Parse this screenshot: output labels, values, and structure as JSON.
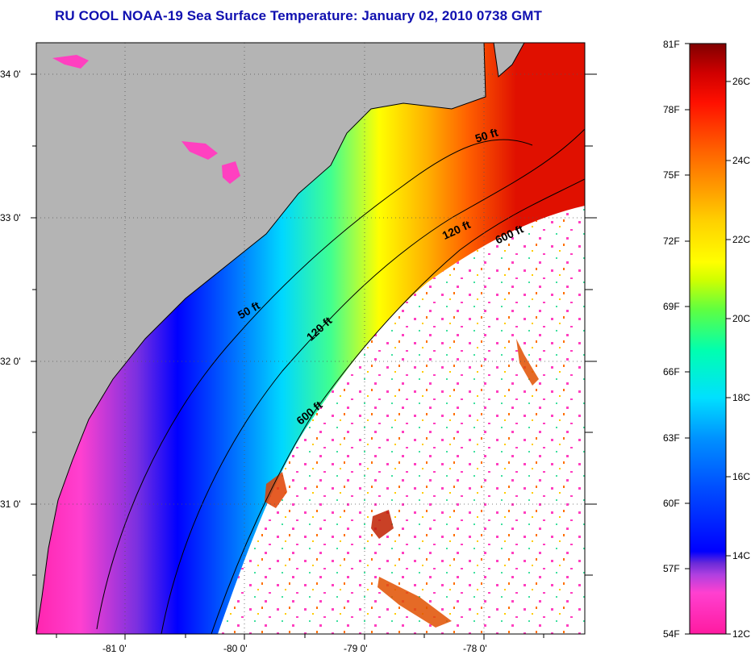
{
  "title": "RU COOL  NOAA-19  Sea Surface Temperature:  January 02, 2010 0738 GMT",
  "map": {
    "lon_ticks": [
      "-81 0'",
      "-80 0'",
      "-79 0'",
      "-78 0'"
    ],
    "lat_ticks": [
      "34 0'",
      "33 0'",
      "32 0'",
      "31 0'"
    ],
    "isobaths": [
      "50 ft",
      "120 ft",
      "600 ft",
      "50 ft",
      "120 ft",
      "600 ft"
    ],
    "colors": {
      "land": "#b4b4b4",
      "cloud": "#ffffff",
      "coast": "#000000"
    }
  },
  "colorbar": {
    "fahrenheit_labels": [
      "81F",
      "78F",
      "75F",
      "72F",
      "69F",
      "66F",
      "63F",
      "60F",
      "57F",
      "54F"
    ],
    "celsius_labels": [
      "26C",
      "24C",
      "22C",
      "20C",
      "18C",
      "16C",
      "14C",
      "12C"
    ],
    "colors": [
      "#ff1aa0",
      "#ff40d0",
      "#b040e0",
      "#6a2ad8",
      "#0000ff",
      "#0050ff",
      "#0090ff",
      "#00e0ff",
      "#00ffb0",
      "#60ff40",
      "#d0ff00",
      "#ffff00",
      "#ffd000",
      "#ffa000",
      "#ff6000",
      "#ff1000",
      "#d00000",
      "#800000"
    ]
  }
}
